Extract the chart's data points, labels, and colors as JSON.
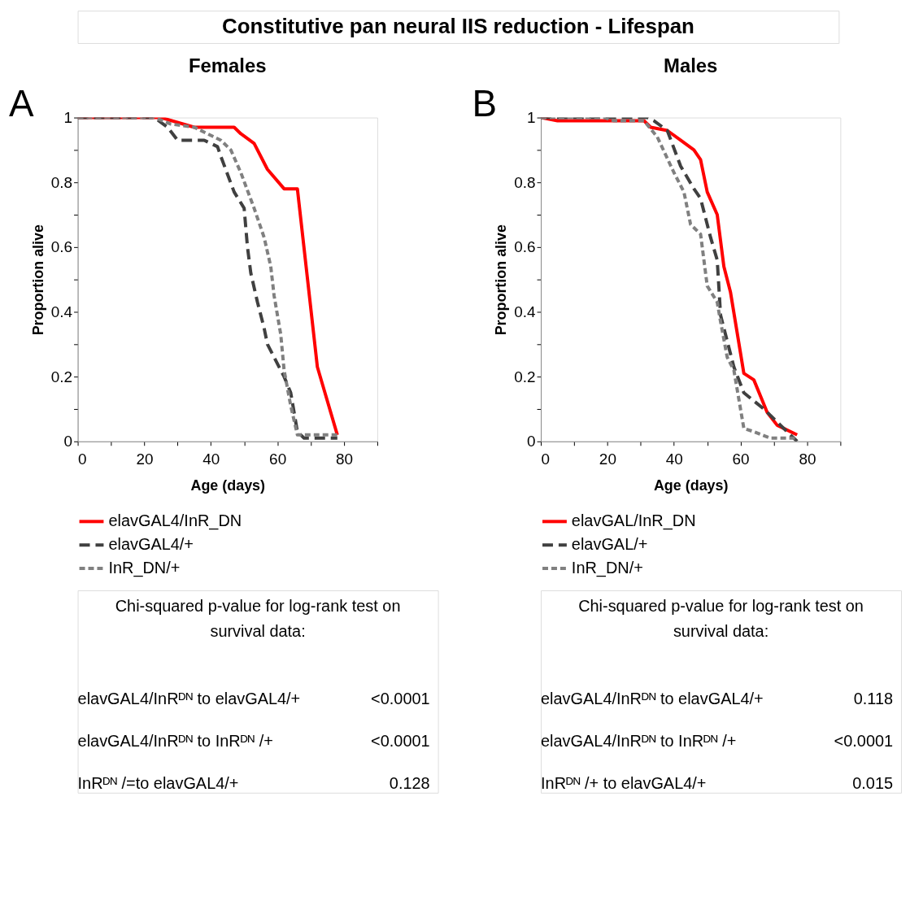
{
  "chart_data": [
    {
      "type": "line",
      "title": "Females",
      "xlabel": "Age (days)",
      "ylabel": "Proportion alive",
      "xlim": [
        0,
        90
      ],
      "ylim": [
        0,
        1
      ],
      "xticks": [
        0,
        {
          "value": 10,
          "label": null
        },
        20,
        {
          "value": 30,
          "label": null
        },
        40,
        {
          "value": 50,
          "label": null
        },
        60,
        {
          "value": 70,
          "label": null
        },
        80,
        {
          "value": 90,
          "label": null
        }
      ],
      "yticks": [
        0,
        {
          "value": 0.1,
          "label": null
        },
        0.2,
        {
          "value": 0.3,
          "label": null
        },
        0.4,
        {
          "value": 0.5,
          "label": null
        },
        0.6,
        {
          "value": 0.7,
          "label": null
        },
        0.8,
        {
          "value": 0.9,
          "label": null
        },
        1
      ],
      "grid": false,
      "legend": "bottom",
      "series": [
        {
          "name": "elavGAL4/InR_DN",
          "color": "#ff0000",
          "line_style": "solid",
          "x": [
            0,
            25,
            35,
            47,
            49,
            53,
            57,
            62,
            66,
            72,
            78
          ],
          "values": [
            1,
            1,
            0.97,
            0.97,
            0.95,
            0.92,
            0.84,
            0.78,
            0.78,
            0.23,
            0.02
          ]
        },
        {
          "name": "elavGAL4/+",
          "color": "#404040",
          "line_style": "dashed",
          "x": [
            0,
            23,
            27,
            30,
            34,
            38,
            42,
            43,
            47,
            50,
            51,
            52,
            54,
            56,
            57,
            62,
            64,
            66,
            68,
            78
          ],
          "values": [
            1,
            1,
            0.97,
            0.93,
            0.93,
            0.93,
            0.91,
            0.88,
            0.77,
            0.72,
            0.6,
            0.52,
            0.43,
            0.35,
            0.3,
            0.2,
            0.15,
            0.03,
            0.01,
            0.01
          ]
        },
        {
          "name": "InR_DN/+",
          "color": "#808080",
          "line_style": "dashed",
          "x": [
            0,
            23,
            28,
            35,
            39,
            43,
            46,
            49,
            53,
            56,
            58,
            59,
            61,
            62,
            64,
            66,
            78
          ],
          "values": [
            1,
            1,
            0.98,
            0.97,
            0.95,
            0.93,
            0.9,
            0.83,
            0.72,
            0.63,
            0.54,
            0.45,
            0.33,
            0.22,
            0.11,
            0.02,
            0.02
          ]
        }
      ],
      "annotations": [
        "Constitutive pan neural IIS reduction - Lifespan",
        "A",
        "Chi-squared p-value for log-rank test on survival data:",
        "elavGAL4/InRᴰᴺ to elavGAL4/+",
        "<0.0001",
        "elavGAL4/InRᴰᴺ to InRᴰᴺ /+",
        "<0.0001",
        "InRᴰᴺ /=to elavGAL4/+",
        "0.128"
      ]
    },
    {
      "type": "line",
      "title": "Males",
      "xlabel": "Age (days)",
      "ylabel": "Proportion alive",
      "xlim": [
        0,
        90
      ],
      "ylim": [
        0,
        1
      ],
      "xticks": [
        0,
        {
          "value": 10,
          "label": null
        },
        20,
        {
          "value": 30,
          "label": null
        },
        40,
        {
          "value": 50,
          "label": null
        },
        60,
        {
          "value": 70,
          "label": null
        },
        80,
        {
          "value": 90,
          "label": null
        }
      ],
      "yticks": [
        0,
        {
          "value": 0.1,
          "label": null
        },
        0.2,
        {
          "value": 0.3,
          "label": null
        },
        0.4,
        {
          "value": 0.5,
          "label": null
        },
        0.6,
        {
          "value": 0.7,
          "label": null
        },
        0.8,
        {
          "value": 0.9,
          "label": null
        },
        1
      ],
      "grid": false,
      "legend": "bottom",
      "series": [
        {
          "name": "elavGAL/InR_DN",
          "color": "#ff0000",
          "line_style": "solid",
          "x": [
            0,
            5,
            31,
            33,
            38,
            42,
            46,
            48,
            50,
            53,
            55,
            57,
            61,
            64,
            68,
            71,
            77
          ],
          "values": [
            1,
            0.99,
            0.99,
            0.97,
            0.96,
            0.93,
            0.9,
            0.87,
            0.77,
            0.7,
            0.54,
            0.46,
            0.21,
            0.19,
            0.09,
            0.05,
            0.02
          ]
        },
        {
          "name": "elavGAL/+",
          "color": "#404040",
          "line_style": "dashed",
          "x": [
            0,
            32,
            34,
            38,
            42,
            46,
            48,
            51,
            53,
            54,
            58,
            61,
            67,
            70,
            72,
            77
          ],
          "values": [
            1,
            1,
            0.99,
            0.96,
            0.85,
            0.78,
            0.75,
            0.63,
            0.56,
            0.39,
            0.23,
            0.15,
            0.1,
            0.07,
            0.05,
            0
          ]
        },
        {
          "name": "InR_DN/+",
          "color": "#808080",
          "line_style": "dashed",
          "x": [
            0,
            19,
            22,
            31,
            35,
            40,
            43,
            45,
            48,
            50,
            53,
            54,
            56,
            58,
            61,
            64,
            69,
            77
          ],
          "values": [
            1,
            1,
            0.99,
            0.99,
            0.94,
            0.83,
            0.77,
            0.67,
            0.64,
            0.48,
            0.43,
            0.37,
            0.26,
            0.22,
            0.04,
            0.03,
            0.01,
            0.01
          ]
        }
      ],
      "annotations": [
        "B",
        "Chi-squared p-value for log-rank test on survival data:",
        "elavGAL4/InRᴰᴺ to elavGAL4/+",
        "0.118",
        "elavGAL4/InRᴰᴺ to InRᴰᴺ /+",
        "<0.0001",
        "InRᴰᴺ /+ to elavGAL4/+",
        "0.015"
      ]
    }
  ]
}
